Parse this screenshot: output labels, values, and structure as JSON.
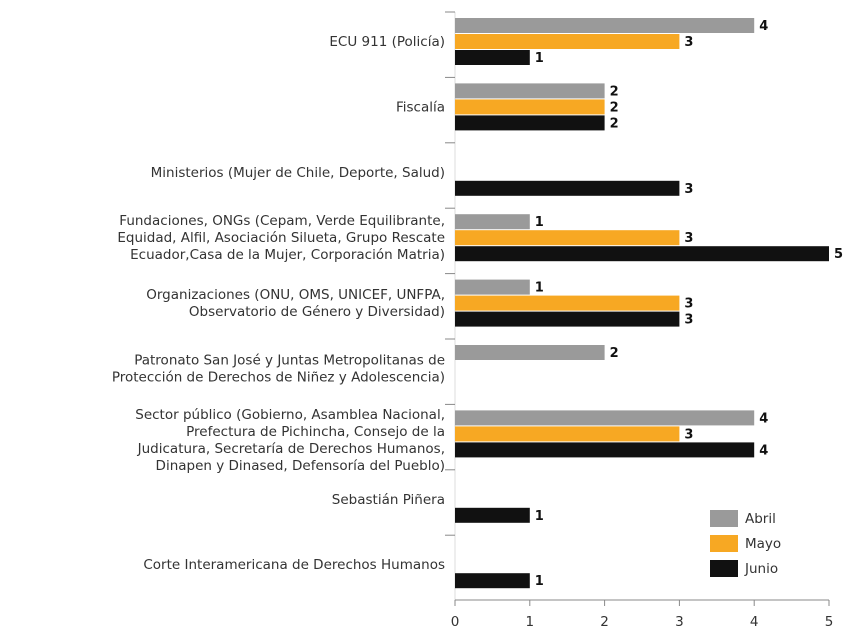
{
  "chart_data": {
    "type": "bar",
    "orientation": "horizontal",
    "categories": [
      "ECU 911 (Policía)",
      "Fiscalía",
      "Ministerios (Mujer de Chile, Deporte, Salud)",
      "Fundaciones, ONGs (Cepam, Verde Equilibrante,\nEquidad, Alfil, Asociación Silueta, Grupo Rescate\nEcuador,Casa de la Mujer, Corporación Matria)",
      "Organizaciones (ONU, OMS, UNICEF, UNFPA,\nObservatorio de Género y Diversidad)",
      "Patronato San José y Juntas Metropolitanas de\nProtección de Derechos de Niñez y Adolescencia)",
      "Sector público (Gobierno, Asamblea Nacional,\nPrefectura de Pichincha, Consejo de la\nJudicatura, Secretaría de Derechos Humanos,\nDinapen y Dinased, Defensoría del Pueblo)",
      "Sebastián Piñera",
      "Corte Interamericana de Derechos Humanos"
    ],
    "series": [
      {
        "name": "Abril",
        "color": "#9a9a9a",
        "values": [
          4,
          2,
          null,
          1,
          1,
          2,
          4,
          null,
          null
        ]
      },
      {
        "name": "Mayo",
        "color": "#f7a823",
        "values": [
          3,
          2,
          null,
          3,
          3,
          null,
          3,
          null,
          null
        ]
      },
      {
        "name": "Junio",
        "color": "#111111",
        "values": [
          1,
          2,
          3,
          5,
          3,
          null,
          4,
          1,
          1
        ]
      }
    ],
    "xlim": [
      0,
      5
    ],
    "xticks": [
      0,
      1,
      2,
      3,
      4,
      5
    ],
    "legend": "lower right"
  }
}
